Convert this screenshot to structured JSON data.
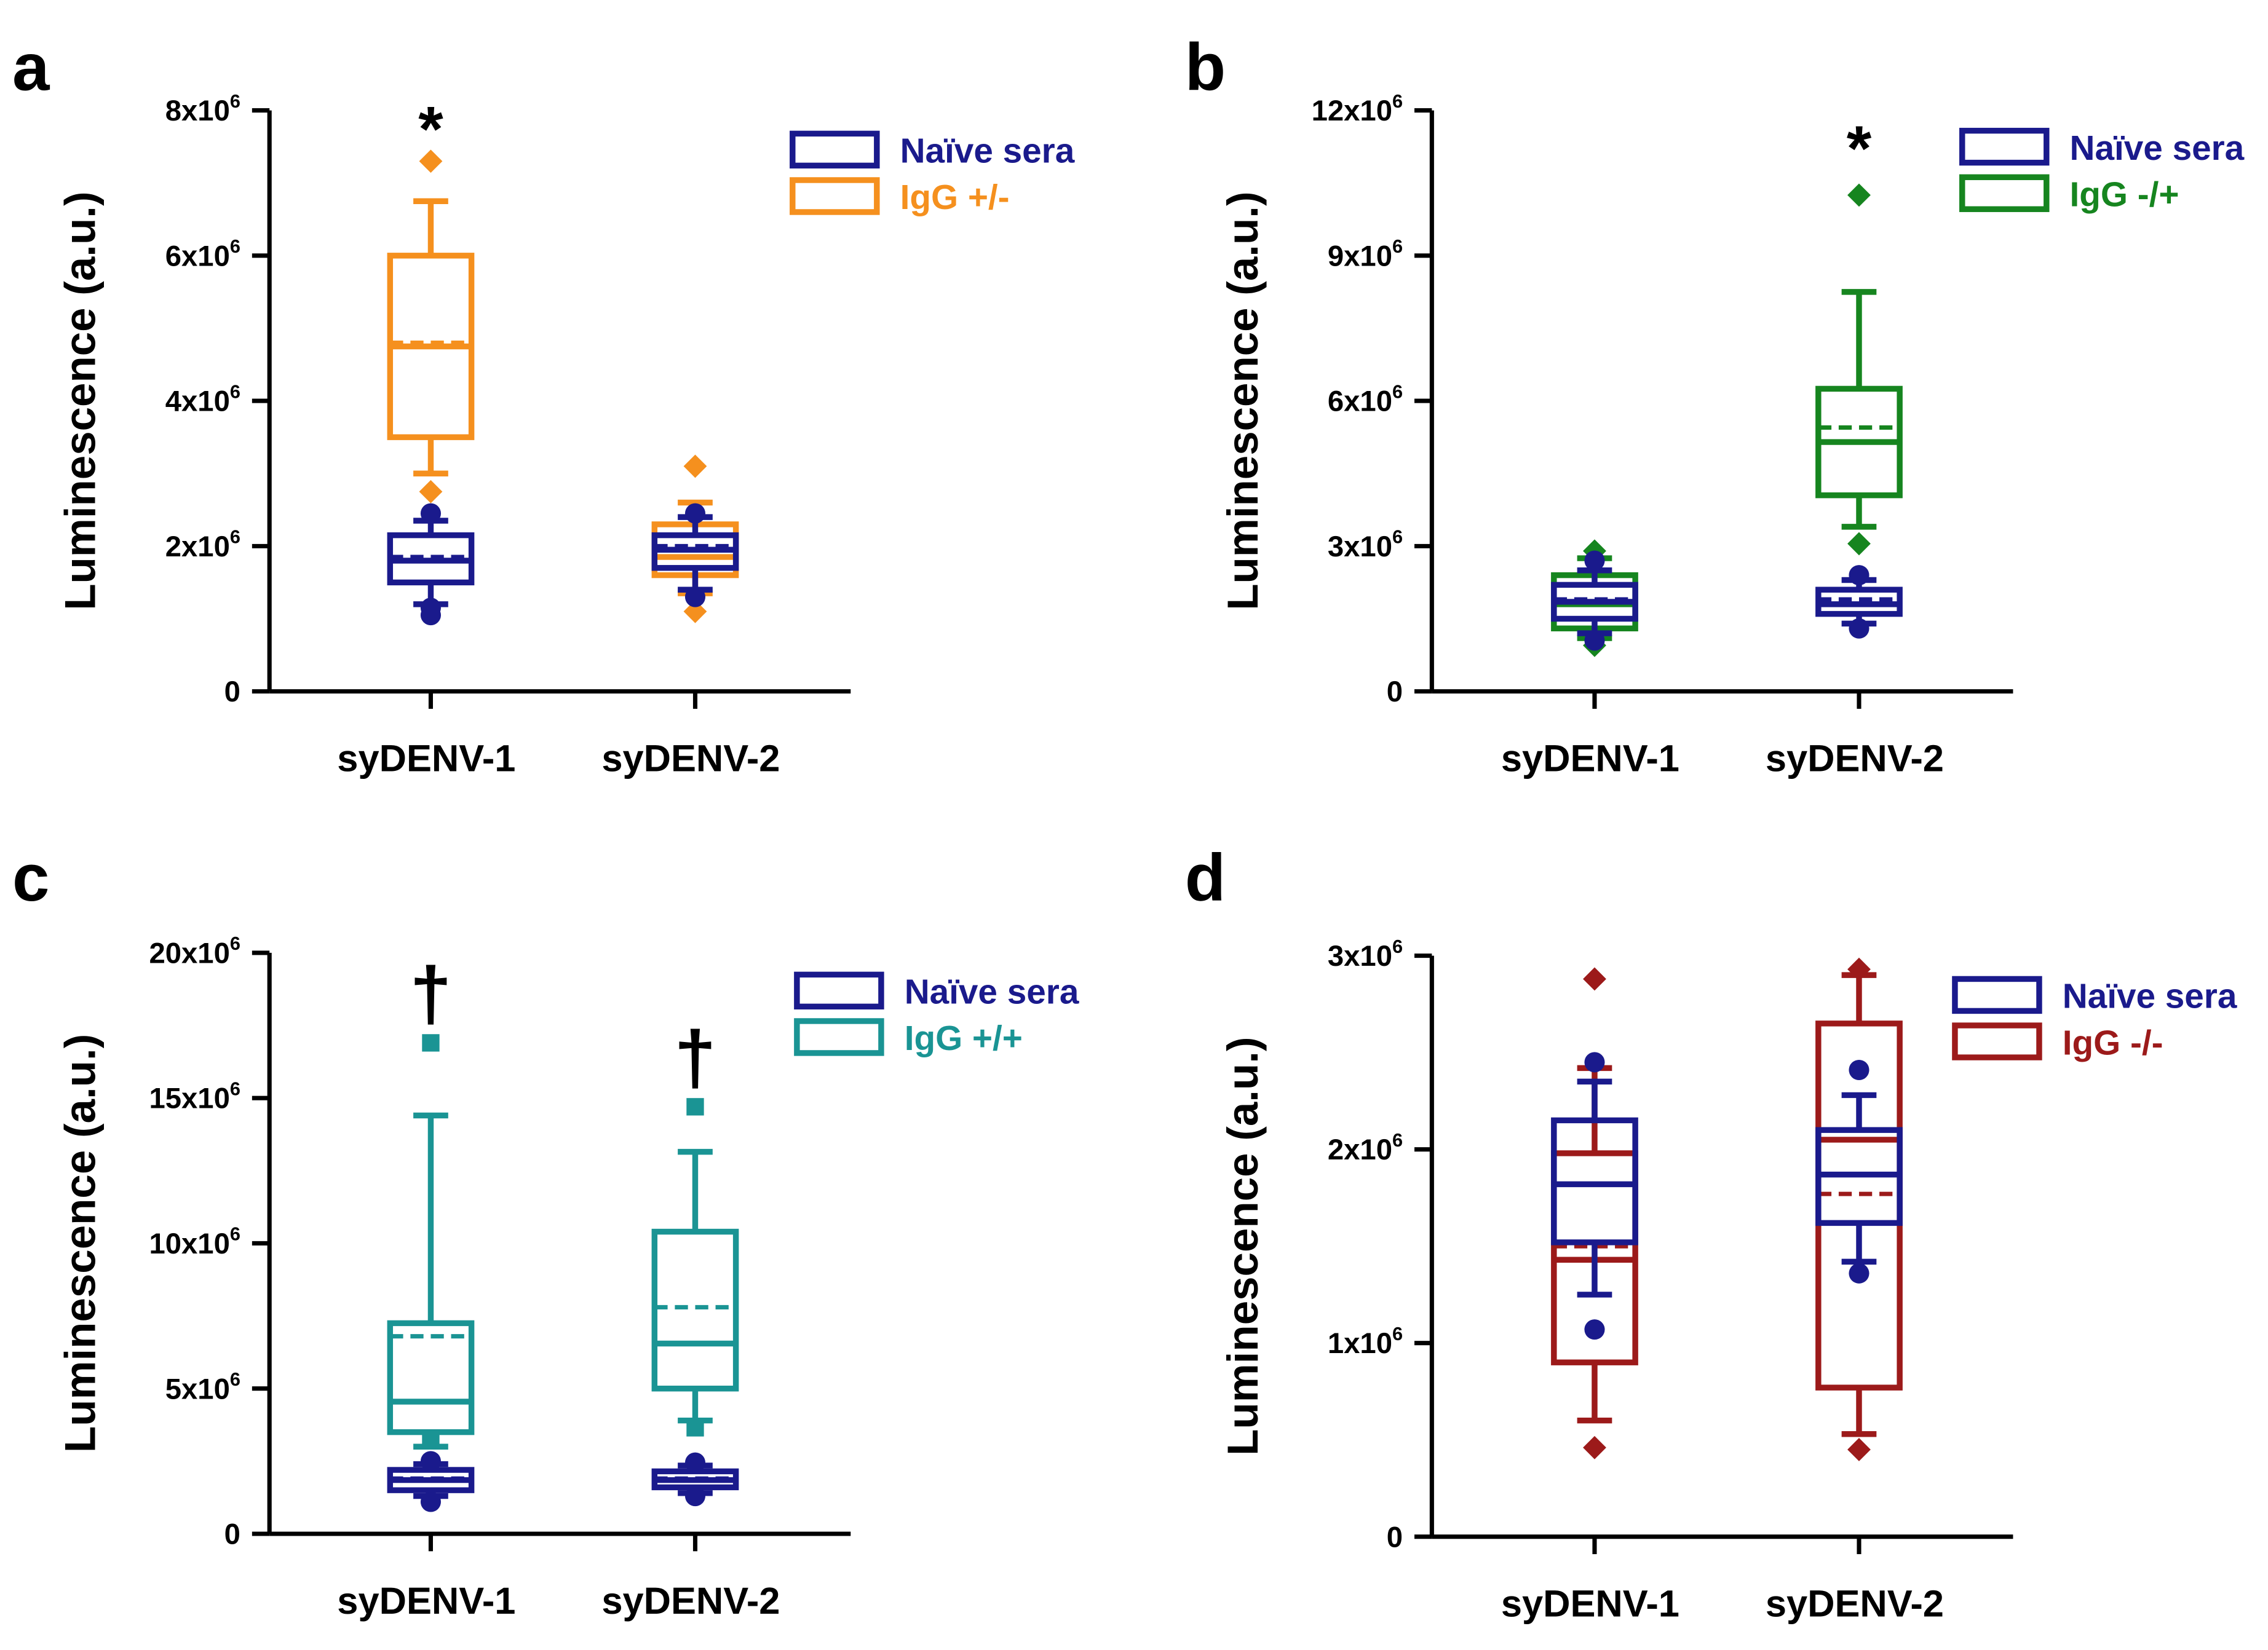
{
  "chart_data": [
    {
      "panel": "a",
      "type": "box",
      "ylabel": "Luminescence (a.u.)",
      "ylim": [
        0,
        8
      ],
      "yticks": [
        {
          "v": 0,
          "label": "0"
        },
        {
          "v": 2,
          "label": "2x10",
          "exp": "6"
        },
        {
          "v": 4,
          "label": "4x10",
          "exp": "6"
        },
        {
          "v": 6,
          "label": "6x10",
          "exp": "6"
        },
        {
          "v": 8,
          "label": "8x10",
          "exp": "6"
        }
      ],
      "categories": [
        "syDENV-1",
        "syDENV-2"
      ],
      "legend": [
        {
          "label": "Naïve sera",
          "color": "#1a1a8c"
        },
        {
          "label": "IgG +/-",
          "color": "#f5901e"
        }
      ],
      "series": [
        {
          "name": "Naïve sera",
          "color": "#1a1a8c",
          "marker": "circle",
          "boxes": [
            {
              "cat": 0,
              "wlo": 1.2,
              "q1": 1.5,
              "med": 1.8,
              "mean": 1.85,
              "q3": 2.15,
              "whi": 2.35,
              "out": [
                1.05,
                1.15,
                2.45
              ]
            },
            {
              "cat": 1,
              "wlo": 1.4,
              "q1": 1.7,
              "med": 1.95,
              "mean": 2.0,
              "q3": 2.15,
              "whi": 2.4,
              "out": [
                1.3,
                2.45
              ]
            }
          ]
        },
        {
          "name": "IgG +/-",
          "color": "#f5901e",
          "marker": "diamond",
          "boxes": [
            {
              "cat": 0,
              "wlo": 3.0,
              "q1": 3.5,
              "med": 4.75,
              "mean": 4.8,
              "q3": 6.0,
              "whi": 6.75,
              "out": [
                2.75,
                7.3
              ]
            },
            {
              "cat": 1,
              "wlo": 1.35,
              "q1": 1.6,
              "med": 1.85,
              "mean": 1.95,
              "q3": 2.3,
              "whi": 2.6,
              "out": [
                1.1,
                3.1
              ]
            }
          ]
        }
      ],
      "annotations": [
        {
          "cat": 0,
          "text": "*",
          "y": 7.8
        }
      ]
    },
    {
      "panel": "b",
      "type": "box",
      "ylabel": "Luminescence (a.u.)",
      "ylim": [
        0,
        12
      ],
      "yticks": [
        {
          "v": 0,
          "label": "0"
        },
        {
          "v": 3,
          "label": "3x10",
          "exp": "6"
        },
        {
          "v": 6,
          "label": "6x10",
          "exp": "6"
        },
        {
          "v": 9,
          "label": "9x10",
          "exp": "6"
        },
        {
          "v": 12,
          "label": "12x10",
          "exp": "6"
        }
      ],
      "categories": [
        "syDENV-1",
        "syDENV-2"
      ],
      "legend": [
        {
          "label": "Naïve sera",
          "color": "#1a1a8c"
        },
        {
          "label": "IgG -/+",
          "color": "#16851f"
        }
      ],
      "series": [
        {
          "name": "Naïve sera",
          "color": "#1a1a8c",
          "marker": "circle",
          "boxes": [
            {
              "cat": 0,
              "wlo": 1.2,
              "q1": 1.5,
              "med": 1.85,
              "mean": 1.9,
              "q3": 2.2,
              "whi": 2.5,
              "out": [
                1.05,
                2.7
              ]
            },
            {
              "cat": 1,
              "wlo": 1.4,
              "q1": 1.6,
              "med": 1.8,
              "mean": 1.9,
              "q3": 2.1,
              "whi": 2.3,
              "out": [
                1.3,
                2.4
              ]
            }
          ]
        },
        {
          "name": "IgG -/+",
          "color": "#16851f",
          "marker": "diamond",
          "boxes": [
            {
              "cat": 0,
              "wlo": 1.1,
              "q1": 1.3,
              "med": 1.8,
              "mean": 1.85,
              "q3": 2.4,
              "whi": 2.75,
              "out": [
                0.95,
                2.9
              ]
            },
            {
              "cat": 1,
              "wlo": 3.4,
              "q1": 4.05,
              "med": 5.15,
              "mean": 5.45,
              "q3": 6.25,
              "whi": 8.25,
              "out": [
                3.05,
                10.25
              ]
            }
          ]
        }
      ],
      "annotations": [
        {
          "cat": 1,
          "text": "*",
          "y": 11.3
        }
      ]
    },
    {
      "panel": "c",
      "type": "box",
      "ylabel": "Luminescence (a.u.)",
      "ylim": [
        0,
        20
      ],
      "yticks": [
        {
          "v": 0,
          "label": "0"
        },
        {
          "v": 5,
          "label": "5x10",
          "exp": "6"
        },
        {
          "v": 10,
          "label": "10x10",
          "exp": "6"
        },
        {
          "v": 15,
          "label": "15x10",
          "exp": "6"
        },
        {
          "v": 20,
          "label": "20x10",
          "exp": "6"
        }
      ],
      "categories": [
        "syDENV-1",
        "syDENV-2"
      ],
      "legend": [
        {
          "label": "Naïve sera",
          "color": "#1a1a8c"
        },
        {
          "label": "IgG +/+",
          "color": "#1a9494"
        }
      ],
      "series": [
        {
          "name": "Naïve sera",
          "color": "#1a1a8c",
          "marker": "circle",
          "boxes": [
            {
              "cat": 0,
              "wlo": 1.3,
              "q1": 1.5,
              "med": 1.85,
              "mean": 1.9,
              "q3": 2.2,
              "whi": 2.4,
              "out": [
                1.1,
                2.5
              ]
            },
            {
              "cat": 1,
              "wlo": 1.4,
              "q1": 1.6,
              "med": 1.85,
              "mean": 1.9,
              "q3": 2.15,
              "whi": 2.35,
              "out": [
                1.3,
                2.45
              ]
            }
          ]
        },
        {
          "name": "IgG +/+",
          "color": "#1a9494",
          "marker": "square",
          "boxes": [
            {
              "cat": 0,
              "wlo": 3.0,
              "q1": 3.5,
              "med": 4.55,
              "mean": 6.8,
              "q3": 7.25,
              "whi": 14.4,
              "out": [
                3.2,
                16.9
              ]
            },
            {
              "cat": 1,
              "wlo": 3.9,
              "q1": 5.0,
              "med": 6.55,
              "mean": 7.8,
              "q3": 10.4,
              "whi": 13.15,
              "out": [
                3.65,
                14.7
              ]
            }
          ]
        }
      ],
      "annotations": [
        {
          "cat": 0,
          "text": "†",
          "y": 18.6
        },
        {
          "cat": 1,
          "text": "†",
          "y": 16.4
        }
      ]
    },
    {
      "panel": "d",
      "type": "box",
      "ylabel": "Luminescence (a.u.)",
      "ylim": [
        0,
        3
      ],
      "yticks": [
        {
          "v": 0,
          "label": "0"
        },
        {
          "v": 1,
          "label": "1x10",
          "exp": "6"
        },
        {
          "v": 2,
          "label": "2x10",
          "exp": "6"
        },
        {
          "v": 3,
          "label": "3x10",
          "exp": "6"
        }
      ],
      "categories": [
        "syDENV-1",
        "syDENV-2"
      ],
      "legend": [
        {
          "label": "Naïve sera",
          "color": "#1a1a8c"
        },
        {
          "label": "IgG -/-",
          "color": "#9c1a1a"
        }
      ],
      "series": [
        {
          "name": "Naïve sera",
          "color": "#1a1a8c",
          "marker": "circle",
          "boxes": [
            {
              "cat": 0,
              "wlo": 1.25,
              "q1": 1.52,
              "med": 1.82,
              "mean": 1.82,
              "q3": 2.15,
              "whi": 2.35,
              "out": [
                1.07,
                2.45
              ]
            },
            {
              "cat": 1,
              "wlo": 1.42,
              "q1": 1.62,
              "med": 1.87,
              "mean": 1.87,
              "q3": 2.1,
              "whi": 2.28,
              "out": [
                1.36,
                2.41
              ]
            }
          ]
        },
        {
          "name": "IgG -/-",
          "color": "#9c1a1a",
          "marker": "diamond",
          "boxes": [
            {
              "cat": 0,
              "wlo": 0.6,
              "q1": 0.9,
              "med": 1.43,
              "mean": 1.5,
              "q3": 1.98,
              "whi": 2.42,
              "out": [
                0.46,
                2.88
              ]
            },
            {
              "cat": 1,
              "wlo": 0.53,
              "q1": 0.77,
              "med": 2.05,
              "mean": 1.77,
              "q3": 2.65,
              "whi": 2.9,
              "out": [
                0.45,
                2.93
              ]
            }
          ]
        }
      ],
      "annotations": []
    }
  ]
}
